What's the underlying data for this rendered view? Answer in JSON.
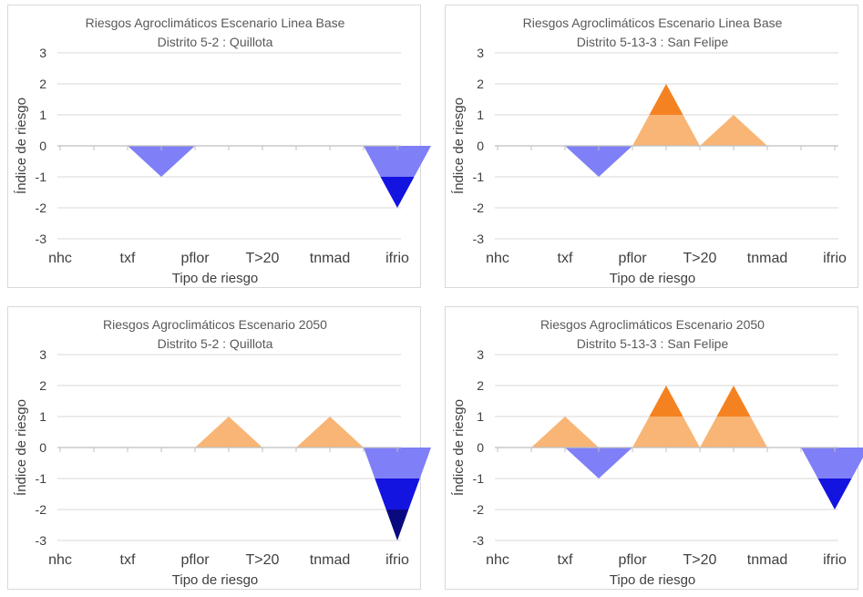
{
  "chart_data": [
    {
      "type": "area",
      "title": "Riesgos Agroclimáticos Escenario Linea Base",
      "subtitle": "Distrito 5-2 :  Quillota",
      "xlabel": "Tipo de riesgo",
      "ylabel": "Índice de riesgo",
      "categories": [
        "nhc",
        "txf",
        "pflor",
        "T>20",
        "tnmad",
        "ifrio"
      ],
      "yticks": [
        "3",
        "2",
        "1",
        "0",
        "-1",
        "-2",
        "-3"
      ],
      "ylim": [
        -3,
        3
      ],
      "grid": true,
      "peaks": [
        {
          "x": 1.5,
          "value": -1
        },
        {
          "x": 5.0,
          "value": -2
        }
      ]
    },
    {
      "type": "area",
      "title": "Riesgos Agroclimáticos Escenario Linea Base",
      "subtitle": "Distrito 5-13-3 :  San Felipe",
      "xlabel": "Tipo de riesgo",
      "ylabel": "Índice de riesgo",
      "categories": [
        "nhc",
        "txf",
        "pflor",
        "T>20",
        "tnmad",
        "ifrio"
      ],
      "yticks": [
        "3",
        "2",
        "1",
        "0",
        "-1",
        "-2",
        "-3"
      ],
      "ylim": [
        -3,
        3
      ],
      "grid": true,
      "peaks": [
        {
          "x": 1.5,
          "value": -1
        },
        {
          "x": 2.5,
          "value": 2
        },
        {
          "x": 3.5,
          "value": 1
        }
      ]
    },
    {
      "type": "area",
      "title": "Riesgos Agroclimáticos Escenario 2050",
      "subtitle": "Distrito 5-2 :  Quillota",
      "xlabel": "Tipo de riesgo",
      "ylabel": "Índice de riesgo",
      "categories": [
        "nhc",
        "txf",
        "pflor",
        "T>20",
        "tnmad",
        "ifrio"
      ],
      "yticks": [
        "3",
        "2",
        "1",
        "0",
        "-1",
        "-2",
        "-3"
      ],
      "ylim": [
        -3,
        3
      ],
      "grid": true,
      "peaks": [
        {
          "x": 2.5,
          "value": 1
        },
        {
          "x": 4.0,
          "value": 1
        },
        {
          "x": 5.0,
          "value": -3
        }
      ]
    },
    {
      "type": "area",
      "title": "Riesgos Agroclimáticos Escenario 2050",
      "subtitle": "Distrito 5-13-3 :  San Felipe",
      "xlabel": "Tipo de riesgo",
      "ylabel": "Índice de riesgo",
      "categories": [
        "nhc",
        "txf",
        "pflor",
        "T>20",
        "tnmad",
        "ifrio"
      ],
      "yticks": [
        "3",
        "2",
        "1",
        "0",
        "-1",
        "-2",
        "-3"
      ],
      "ylim": [
        -3,
        3
      ],
      "grid": true,
      "peaks": [
        {
          "x": 1.0,
          "value": 1
        },
        {
          "x": 1.5,
          "value": -1
        },
        {
          "x": 2.5,
          "value": 2
        },
        {
          "x": 3.5,
          "value": 2
        },
        {
          "x": 5.0,
          "value": -2
        }
      ]
    }
  ],
  "colors": {
    "positive_levels": [
      "#f8b575",
      "#f58220",
      "#d45f00"
    ],
    "negative_levels": [
      "#7f7ff7",
      "#1414e0",
      "#0a0a80"
    ],
    "grid": "#d9d9d9",
    "axis": "#bfbfbf",
    "text": "#404040",
    "title": "#595959"
  }
}
